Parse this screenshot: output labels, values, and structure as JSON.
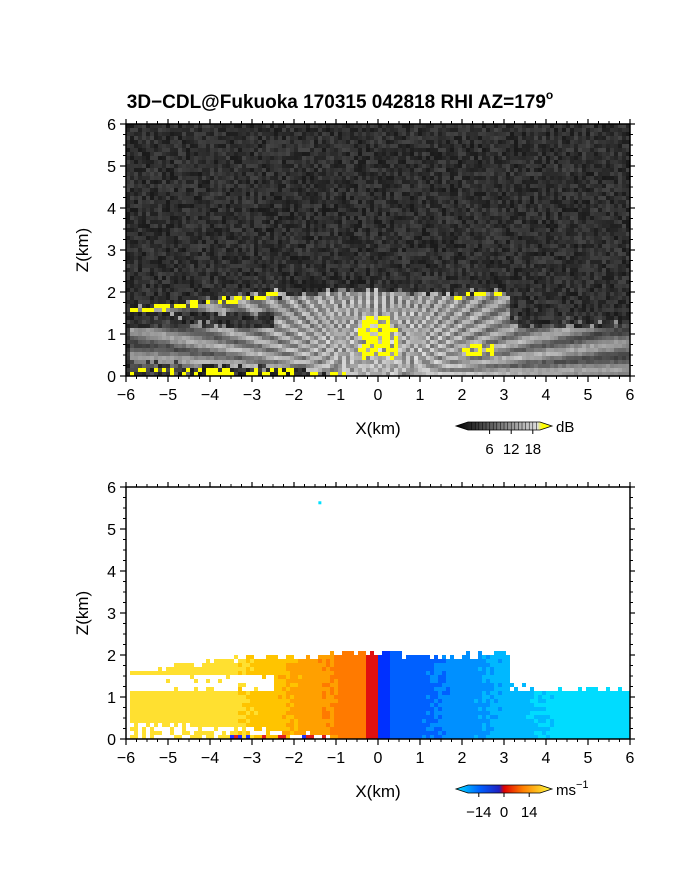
{
  "title": "3D−CDL@Fukuoka 170315 042818 RHI AZ=179º",
  "title_main": "3D−CDL@Fukuoka 170315 042818 RHI AZ=179",
  "title_sup": "o",
  "chart_data": [
    {
      "type": "heatmap",
      "name": "reflectivity",
      "xlabel": "X(km)",
      "ylabel": "Z(km)",
      "xlim": [
        -6,
        6
      ],
      "ylim": [
        0,
        6
      ],
      "xticks": [
        "−6",
        "−5",
        "−4",
        "−3",
        "−2",
        "−1",
        "0",
        "1",
        "2",
        "3",
        "4",
        "5",
        "6"
      ],
      "yticks": [
        "0",
        "1",
        "2",
        "3",
        "4",
        "5",
        "6"
      ],
      "colorbar": {
        "label": "dB",
        "ticks": [
          "6",
          "12",
          "18"
        ],
        "range": [
          0,
          20
        ],
        "colormap": "grayscale-to-yellow"
      },
      "colors": {
        "background": "#2a2a2a",
        "saturated": "#ffff00"
      },
      "grid": false
    },
    {
      "type": "heatmap",
      "name": "doppler-velocity",
      "xlabel": "X(km)",
      "ylabel": "Z(km)",
      "xlim": [
        -6,
        6
      ],
      "ylim": [
        0,
        6
      ],
      "xticks": [
        "−6",
        "−5",
        "−4",
        "−3",
        "−2",
        "−1",
        "0",
        "1",
        "2",
        "3",
        "4",
        "5",
        "6"
      ],
      "yticks": [
        "0",
        "1",
        "2",
        "3",
        "4",
        "5",
        "6"
      ],
      "colorbar": {
        "label_main": "ms",
        "label_sup": "−1",
        "ticks": [
          "−14",
          "0",
          "14"
        ],
        "range": [
          -20,
          20
        ],
        "colormap": "cyan-blue-red-yellow"
      },
      "colors": {
        "negative": "#00b4ff",
        "strong_negative": "#0040ff",
        "zero": "#e00000",
        "positive": "#ffa000",
        "strong_positive": "#ffff40"
      },
      "grid": false
    }
  ]
}
